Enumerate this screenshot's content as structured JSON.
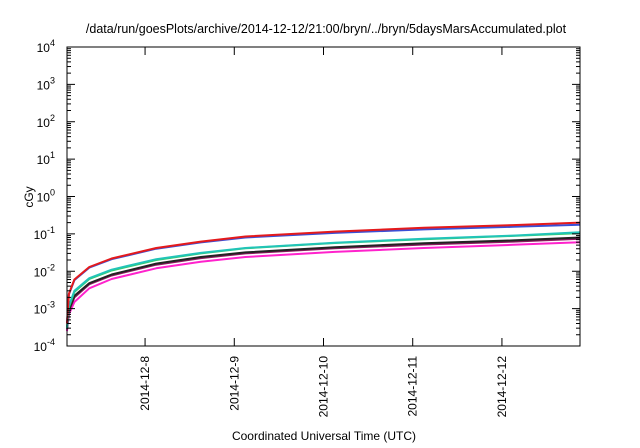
{
  "chart_data": {
    "type": "line",
    "title": "/data/run/goesPlots/archive/2014-12-12/21:00/bryn/../bryn/5daysMarsAccumulated.plot",
    "xlabel": "Coordinated Universal Time (UTC)",
    "ylabel": "cGy",
    "x_scale": "time",
    "x_range": [
      "2014-12-07T03:00",
      "2014-12-12T21:00"
    ],
    "x_ticks": [
      "2014-12-8",
      "2014-12-9",
      "2014-12-10",
      "2014-12-11",
      "2014-12-12"
    ],
    "y_scale": "log",
    "y_range": [
      0.0001,
      10000
    ],
    "y_ticks": [
      {
        "base": "10",
        "exp": "-4"
      },
      {
        "base": "10",
        "exp": "-3"
      },
      {
        "base": "10",
        "exp": "-2"
      },
      {
        "base": "10",
        "exp": "-1"
      },
      {
        "base": "10",
        "exp": "0"
      },
      {
        "base": "10",
        "exp": "1"
      },
      {
        "base": "10",
        "exp": "2"
      },
      {
        "base": "10",
        "exp": "3"
      },
      {
        "base": "10",
        "exp": "4"
      }
    ],
    "grid": false,
    "legend": "none",
    "x": [
      "2014-12-07T03:00",
      "2014-12-07T03:30",
      "2014-12-07T05:00",
      "2014-12-07T09:00",
      "2014-12-07T15:00",
      "2014-12-08T03:00",
      "2014-12-08T15:00",
      "2014-12-09T03:00",
      "2014-12-10T03:00",
      "2014-12-11T03:00",
      "2014-12-12T03:00",
      "2014-12-12T21:00"
    ],
    "series": [
      {
        "color": "#e41a1c",
        "values": [
          0.0004,
          0.0025,
          0.006,
          0.013,
          0.022,
          0.042,
          0.062,
          0.085,
          0.115,
          0.145,
          0.172,
          0.2
        ]
      },
      {
        "color": "#3a4fd6",
        "values": [
          0.0004,
          0.0024,
          0.0058,
          0.0125,
          0.021,
          0.04,
          0.059,
          0.08,
          0.106,
          0.132,
          0.155,
          0.175
        ]
      },
      {
        "color": "#22c4b8",
        "values": [
          0.0003,
          0.0012,
          0.003,
          0.0065,
          0.011,
          0.021,
          0.031,
          0.042,
          0.058,
          0.074,
          0.09,
          0.11
        ]
      },
      {
        "color": "#33cc66",
        "values": [
          0.0003,
          0.0011,
          0.0028,
          0.0062,
          0.0105,
          0.02,
          0.03,
          0.041,
          0.057,
          0.072,
          0.088,
          0.105
        ]
      },
      {
        "color": "#222222",
        "values": [
          0.0003,
          0.0009,
          0.0022,
          0.0048,
          0.0082,
          0.016,
          0.024,
          0.032,
          0.044,
          0.056,
          0.067,
          0.08
        ]
      },
      {
        "color": "#8b1a5e",
        "values": [
          0.00028,
          0.00085,
          0.002,
          0.0045,
          0.0077,
          0.015,
          0.0225,
          0.03,
          0.041,
          0.052,
          0.062,
          0.074
        ]
      },
      {
        "color": "#ff22cc",
        "values": [
          0.00025,
          0.0007,
          0.0015,
          0.0035,
          0.0062,
          0.012,
          0.018,
          0.024,
          0.033,
          0.042,
          0.051,
          0.06
        ]
      }
    ]
  }
}
